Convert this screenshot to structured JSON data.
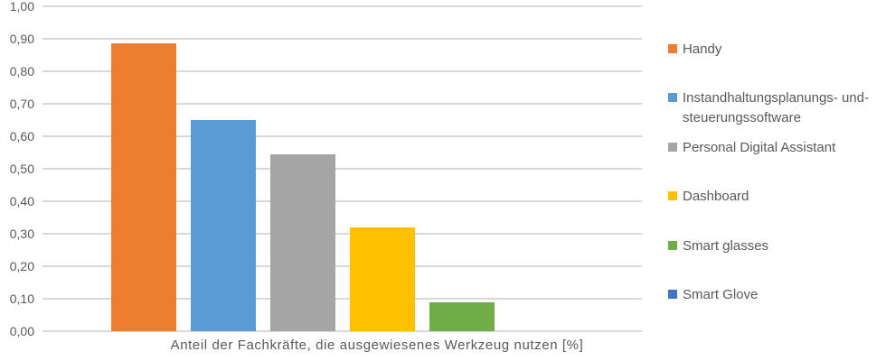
{
  "chart_data": {
    "type": "bar",
    "title": "",
    "xlabel": "Anteil der Fachkräfte, die ausgewiesenes Werkzeug nutzen [%]",
    "ylabel": "",
    "ylim": [
      0,
      1
    ],
    "ytick_step": 0.1,
    "grid": true,
    "legend_position": "right",
    "value_format": "decimal-comma",
    "categories": [
      "Anteil der Fachkräfte, die ausgewiesenes Werkzeug nutzen [%]"
    ],
    "yticks": [
      {
        "value": 0.0,
        "label": "0,00"
      },
      {
        "value": 0.1,
        "label": "0,10"
      },
      {
        "value": 0.2,
        "label": "0,20"
      },
      {
        "value": 0.3,
        "label": "0,30"
      },
      {
        "value": 0.4,
        "label": "0,40"
      },
      {
        "value": 0.5,
        "label": "0,50"
      },
      {
        "value": 0.6,
        "label": "0,60"
      },
      {
        "value": 0.7,
        "label": "0,70"
      },
      {
        "value": 0.8,
        "label": "0,80"
      },
      {
        "value": 0.9,
        "label": "0,90"
      },
      {
        "value": 1.0,
        "label": "1,00"
      }
    ],
    "series": [
      {
        "name": "Handy",
        "value": 0.885,
        "color": "#ED7D31",
        "legend_lines": [
          "Handy"
        ]
      },
      {
        "name": "Instandhaltungsplanungs- und-steuerungssoftware",
        "value": 0.65,
        "color": "#5B9BD5",
        "legend_lines": [
          "Instandhaltungsplanungs- und-",
          "steuerungssoftware"
        ]
      },
      {
        "name": "Personal Digital Assistant",
        "value": 0.545,
        "color": "#A5A5A5",
        "legend_lines": [
          "Personal Digital Assistant"
        ]
      },
      {
        "name": "Dashboard",
        "value": 0.32,
        "color": "#FFC000",
        "legend_lines": [
          "Dashboard"
        ]
      },
      {
        "name": "Smart glasses",
        "value": 0.09,
        "color": "#70AD47",
        "legend_lines": [
          "Smart glasses"
        ]
      },
      {
        "name": "Smart Glove",
        "value": 0.0,
        "color": "#4472C4",
        "legend_lines": [
          "Smart Glove"
        ]
      }
    ],
    "colors": {
      "gridline": "#D9D9D9",
      "text": "#595959",
      "background": "#FFFFFF"
    }
  }
}
